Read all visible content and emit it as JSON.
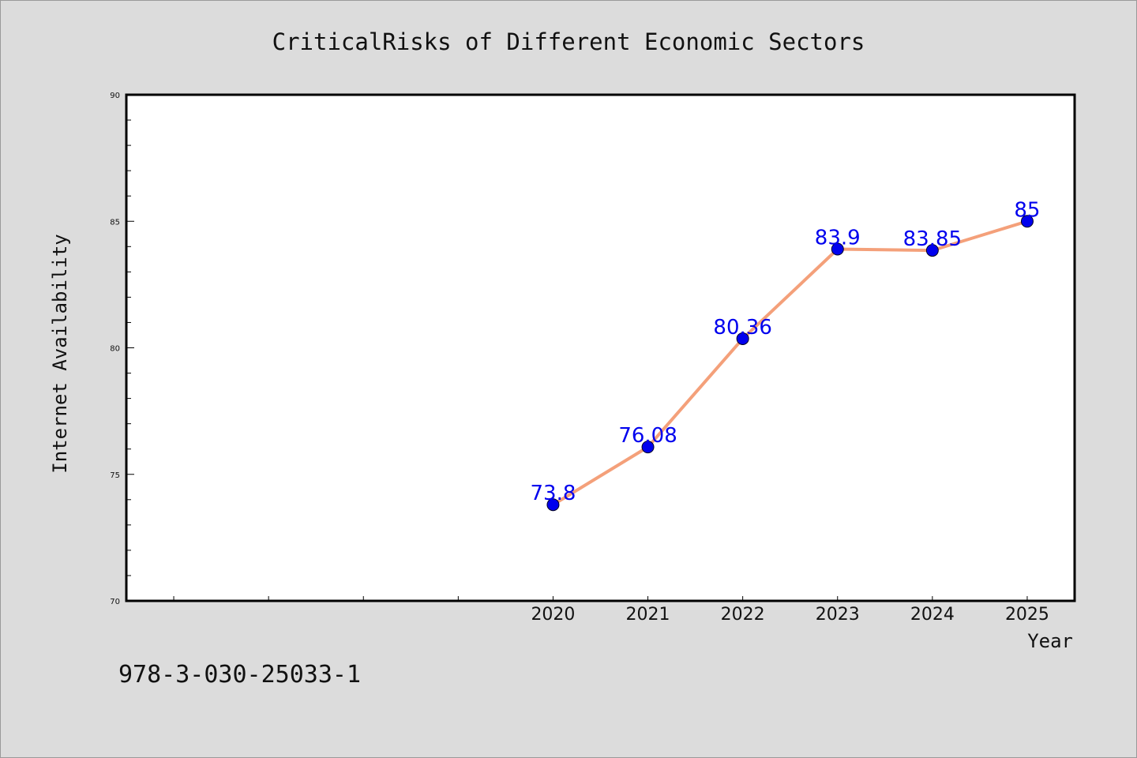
{
  "chart_data": {
    "type": "line",
    "title": "CriticalRisks of Different Economic Sectors",
    "xlabel": "Year",
    "ylabel": "Internet Availability",
    "x": [
      "2020",
      "2021",
      "2022",
      "2023",
      "2024",
      "2025"
    ],
    "series": [
      {
        "values": [
          73.8,
          76.08,
          80.36,
          83.9,
          83.85,
          85
        ]
      }
    ],
    "data_labels": [
      "73.8",
      "76.08",
      "80.36",
      "83.9",
      "83.85",
      "85"
    ],
    "yticks": [
      "70",
      "75",
      "80",
      "85",
      "90"
    ],
    "ylim": [
      70,
      90
    ],
    "grid": false,
    "legend": "none",
    "colors": {
      "line": "#f4a07a",
      "marker": "#0000ee",
      "label": "#0000ee",
      "background": "#dcdcdc",
      "plot": "#ffffff"
    }
  },
  "footer": {
    "isbn": "978-3-030-25033-1"
  }
}
